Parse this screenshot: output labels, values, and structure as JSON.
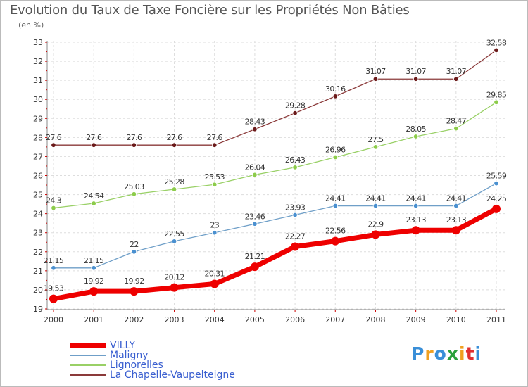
{
  "chart_data": {
    "type": "line",
    "title": "Evolution du Taux de Taxe Foncière sur les Propriétés Non Bâties",
    "subtitle": "(en %)",
    "ylim": [
      19,
      33
    ],
    "yticks": [
      "19",
      "20",
      "21",
      "22",
      "23",
      "24",
      "25",
      "26",
      "27",
      "28",
      "29",
      "30",
      "31",
      "32",
      "33"
    ],
    "categories": [
      "2000",
      "2001",
      "2002",
      "2003",
      "2004",
      "2005",
      "2006",
      "2007",
      "2008",
      "2009",
      "2010",
      "2011"
    ],
    "grid": true,
    "legend": "bottom-left",
    "series": [
      {
        "name": "La Chapelle-Vaupelteigne",
        "color": "#8b3a3a",
        "marker_color": "#6b1a1a",
        "values": [
          27.6,
          27.6,
          27.6,
          27.6,
          27.6,
          28.43,
          29.28,
          30.16,
          31.07,
          31.07,
          31.07,
          32.58
        ],
        "labels": [
          "27.6",
          "27.6",
          "27.6",
          "27.6",
          "27.6",
          "28.43",
          "29.28",
          "30.16",
          "31.07",
          "31.07",
          "31.07",
          "32.58"
        ]
      },
      {
        "name": "Lignorelles",
        "color": "#99d066",
        "marker_color": "#8ccc4a",
        "values": [
          24.3,
          24.54,
          25.03,
          25.28,
          25.53,
          26.04,
          26.43,
          26.96,
          27.5,
          28.05,
          28.47,
          29.85
        ],
        "labels": [
          "24.3",
          "24.54",
          "25.03",
          "25.28",
          "25.53",
          "26.04",
          "26.43",
          "26.96",
          "27.5",
          "28.05",
          "28.47",
          "29.85"
        ]
      },
      {
        "name": "Maligny",
        "color": "#6f9fc8",
        "marker_color": "#4a90d0",
        "values": [
          21.15,
          21.15,
          22,
          22.55,
          23,
          23.46,
          23.93,
          24.41,
          24.41,
          24.41,
          24.41,
          25.59
        ],
        "labels": [
          "21.15",
          "21.15",
          "22",
          "22.55",
          "23",
          "23.46",
          "23.93",
          "24.41",
          "24.41",
          "24.41",
          "24.41",
          "25.59"
        ]
      },
      {
        "name": "VILLY",
        "color": "#ee0000",
        "marker_color": "#ee0000",
        "values": [
          19.53,
          19.92,
          19.92,
          20.12,
          20.31,
          21.21,
          22.27,
          22.56,
          22.9,
          23.13,
          23.13,
          24.25
        ],
        "labels": [
          "19.53",
          "19.92",
          "19.92",
          "20.12",
          "20.31",
          "21.21",
          "22.27",
          "22.56",
          "22.9",
          "23.13",
          "23.13",
          "24.25"
        ]
      }
    ]
  },
  "legend": {
    "items": [
      {
        "name": "VILLY",
        "color": "#ee0000"
      },
      {
        "name": "Maligny",
        "color": "#6f9fc8"
      },
      {
        "name": "Lignorelles",
        "color": "#99d066"
      },
      {
        "name": "La Chapelle-Vaupelteigne",
        "color": "#8b3a3a"
      }
    ]
  },
  "logo": {
    "letters": [
      "P",
      "r",
      "o",
      "x",
      "i",
      "t",
      "i"
    ],
    "colors": [
      "#3a8fd8",
      "#f0a020",
      "#3a8fd8",
      "#2aa03a",
      "#f0a020",
      "#e03030",
      "#3a8fd8"
    ]
  }
}
